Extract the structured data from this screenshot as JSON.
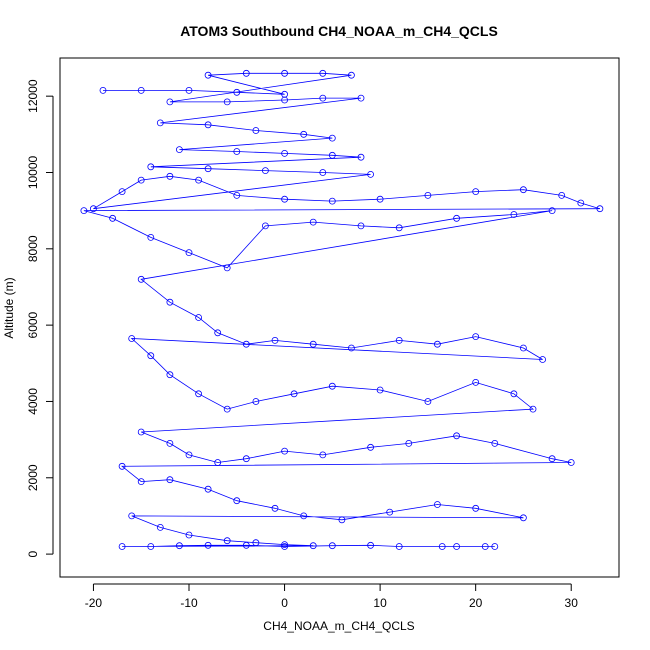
{
  "chart_data": {
    "type": "scatter",
    "title": "ATOM3 Southbound CH4_NOAA_m_CH4_QCLS",
    "xlabel": "CH4_NOAA_m_CH4_QCLS",
    "ylabel": "Altitude (m)",
    "xlim": [
      -23.5,
      35
    ],
    "ylim": [
      -600,
      13000
    ],
    "x_ticks": [
      -20,
      -10,
      0,
      10,
      20,
      30
    ],
    "y_ticks": [
      0,
      2000,
      4000,
      6000,
      8000,
      10000,
      12000
    ],
    "x_tick_labels": [
      "-20",
      "-10",
      "0",
      "10",
      "20",
      "30"
    ],
    "y_tick_labels": [
      "0",
      "2000",
      "4000",
      "6000",
      "8000",
      "10000",
      "12000"
    ],
    "marker": "open-circle",
    "connected_with_lines": true,
    "grid": false,
    "colors": {
      "series": "#0000ff",
      "axes": "#000000",
      "background": "#ffffff"
    },
    "series": [
      {
        "points": [
          [
            -19.0,
            12150
          ],
          [
            -15.0,
            12150
          ],
          [
            -10.0,
            12150
          ],
          [
            -5.0,
            12100
          ],
          [
            0.0,
            12050
          ],
          [
            -8.0,
            12550
          ],
          [
            -4.0,
            12600
          ],
          [
            0.0,
            12600
          ],
          [
            4.0,
            12600
          ],
          [
            7.0,
            12550
          ],
          [
            -12.0,
            11850
          ],
          [
            -6.0,
            11850
          ],
          [
            0.0,
            11900
          ],
          [
            4.0,
            11950
          ],
          [
            8.0,
            11950
          ],
          [
            -13.0,
            11300
          ],
          [
            -8.0,
            11250
          ],
          [
            -3.0,
            11100
          ],
          [
            2.0,
            11000
          ],
          [
            5.0,
            10900
          ],
          [
            -11.0,
            10600
          ],
          [
            -5.0,
            10550
          ],
          [
            0.0,
            10500
          ],
          [
            5.0,
            10450
          ],
          [
            8.0,
            10400
          ],
          [
            -14.0,
            10150
          ],
          [
            -8.0,
            10100
          ],
          [
            -2.0,
            10050
          ],
          [
            4.0,
            10000
          ],
          [
            9.0,
            9950
          ],
          [
            -20.0,
            9050
          ],
          [
            -17.0,
            9500
          ],
          [
            -15.0,
            9800
          ],
          [
            -12.0,
            9900
          ],
          [
            -9.0,
            9800
          ],
          [
            -5.0,
            9400
          ],
          [
            0.0,
            9300
          ],
          [
            5.0,
            9250
          ],
          [
            10.0,
            9300
          ],
          [
            15.0,
            9400
          ],
          [
            20.0,
            9500
          ],
          [
            25.0,
            9550
          ],
          [
            29.0,
            9400
          ],
          [
            31.0,
            9200
          ],
          [
            33.0,
            9050
          ],
          [
            -21.0,
            9000
          ],
          [
            -18.0,
            8800
          ],
          [
            -14.0,
            8300
          ],
          [
            -10.0,
            7900
          ],
          [
            -6.0,
            7500
          ],
          [
            -2.0,
            8600
          ],
          [
            3.0,
            8700
          ],
          [
            8.0,
            8600
          ],
          [
            12.0,
            8550
          ],
          [
            18.0,
            8800
          ],
          [
            24.0,
            8900
          ],
          [
            28.0,
            9000
          ],
          [
            -15.0,
            7200
          ],
          [
            -12.0,
            6600
          ],
          [
            -9.0,
            6200
          ],
          [
            -7.0,
            5800
          ],
          [
            -4.0,
            5500
          ],
          [
            -1.0,
            5600
          ],
          [
            3.0,
            5500
          ],
          [
            7.0,
            5400
          ],
          [
            12.0,
            5600
          ],
          [
            16.0,
            5500
          ],
          [
            20.0,
            5700
          ],
          [
            25.0,
            5400
          ],
          [
            27.0,
            5100
          ],
          [
            -16.0,
            5650
          ],
          [
            -14.0,
            5200
          ],
          [
            -12.0,
            4700
          ],
          [
            -9.0,
            4200
          ],
          [
            -6.0,
            3800
          ],
          [
            -3.0,
            4000
          ],
          [
            1.0,
            4200
          ],
          [
            5.0,
            4400
          ],
          [
            10.0,
            4300
          ],
          [
            15.0,
            4000
          ],
          [
            20.0,
            4500
          ],
          [
            24.0,
            4200
          ],
          [
            26.0,
            3800
          ],
          [
            -15.0,
            3200
          ],
          [
            -12.0,
            2900
          ],
          [
            -10.0,
            2600
          ],
          [
            -7.0,
            2400
          ],
          [
            -4.0,
            2500
          ],
          [
            0.0,
            2700
          ],
          [
            4.0,
            2600
          ],
          [
            9.0,
            2800
          ],
          [
            13.0,
            2900
          ],
          [
            18.0,
            3100
          ],
          [
            22.0,
            2900
          ],
          [
            28.0,
            2500
          ],
          [
            30.0,
            2400
          ],
          [
            -17.0,
            2300
          ],
          [
            -15.0,
            1900
          ],
          [
            -12.0,
            1950
          ],
          [
            -8.0,
            1700
          ],
          [
            -5.0,
            1400
          ],
          [
            -1.0,
            1200
          ],
          [
            2.0,
            1000
          ],
          [
            6.0,
            900
          ],
          [
            11.0,
            1100
          ],
          [
            16.0,
            1300
          ],
          [
            20.0,
            1200
          ],
          [
            25.0,
            950
          ],
          [
            -16.0,
            1000
          ],
          [
            -13.0,
            700
          ],
          [
            -10.0,
            500
          ],
          [
            -6.0,
            350
          ],
          [
            -3.0,
            300
          ],
          [
            0.0,
            250
          ],
          [
            3.0,
            220
          ],
          [
            -17.0,
            200
          ],
          [
            -14.0,
            200
          ],
          [
            -11.0,
            220
          ],
          [
            -8.0,
            230
          ],
          [
            -4.0,
            230
          ],
          [
            0.0,
            200
          ],
          [
            5.0,
            220
          ],
          [
            9.0,
            230
          ],
          [
            12.0,
            200
          ],
          [
            16.5,
            200
          ],
          [
            18.0,
            200
          ],
          [
            21.0,
            200
          ],
          [
            22.0,
            200
          ]
        ]
      }
    ]
  }
}
